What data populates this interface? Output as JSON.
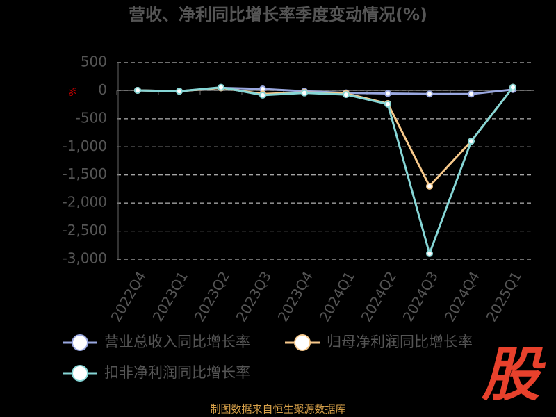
{
  "chart_data": {
    "type": "line",
    "title": "营收、净利同比增长率季度变动情况(%)",
    "y_unit": "%",
    "categories": [
      "2022Q4",
      "2023Q1",
      "2023Q2",
      "2023Q3",
      "2023Q4",
      "2024Q1",
      "2024Q2",
      "2024Q3",
      "2024Q4",
      "2025Q1"
    ],
    "series": [
      {
        "name": "营业总收入同比增长率",
        "color": "#9aa8e0",
        "values": [
          5,
          -10,
          50,
          30,
          -10,
          -40,
          -50,
          -60,
          -60,
          20
        ]
      },
      {
        "name": "归母净利润同比增长率",
        "color": "#f7c98b",
        "values": [
          5,
          -10,
          50,
          -60,
          -30,
          -50,
          -230,
          -1700,
          -900,
          60
        ]
      },
      {
        "name": "扣非净利润同比增长率",
        "color": "#86d6d6",
        "values": [
          5,
          -10,
          60,
          -80,
          -40,
          -70,
          -240,
          -2900,
          -900,
          60
        ]
      }
    ],
    "ylim": [
      -3000,
      500
    ],
    "yticks": [
      {
        "value": -3000,
        "label": "-3,000"
      },
      {
        "value": -2500,
        "label": "-2,500"
      },
      {
        "value": -2000,
        "label": "-2,000"
      },
      {
        "value": -1500,
        "label": "-1,500"
      },
      {
        "value": -1000,
        "label": "-1,000"
      },
      -500,
      0,
      500
    ],
    "grid": true,
    "logo": "股",
    "source": "制图数据来自恒生聚源数据库"
  }
}
